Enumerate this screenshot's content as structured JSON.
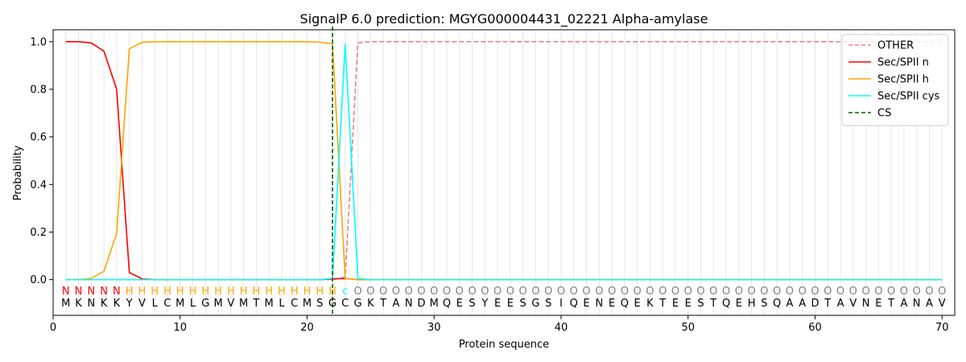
{
  "chart_data": {
    "type": "line",
    "title": "SignalP 6.0 prediction: MGYG000004431_02221 Alpha-amylase",
    "xlabel": "Protein sequence",
    "ylabel": "Probability",
    "xlim": [
      0,
      71
    ],
    "ylim": [
      -0.15,
      1.05
    ],
    "x_ticks": [
      0,
      10,
      20,
      30,
      40,
      50,
      60,
      70
    ],
    "y_ticks": [
      0.0,
      0.2,
      0.4,
      0.6,
      0.8,
      1.0
    ],
    "x_tick_labels": [
      "0",
      "10",
      "20",
      "30",
      "40",
      "50",
      "60",
      "70"
    ],
    "y_tick_labels": [
      "0.0",
      "0.2",
      "0.4",
      "0.6",
      "0.8",
      "1.0"
    ],
    "legend_position": "top-right",
    "sequence": [
      "M",
      "K",
      "N",
      "K",
      "K",
      "Y",
      "V",
      "L",
      "C",
      "M",
      "L",
      "G",
      "M",
      "V",
      "M",
      "T",
      "M",
      "L",
      "C",
      "M",
      "S",
      "G",
      "C",
      "G",
      "K",
      "T",
      "A",
      "N",
      "D",
      "M",
      "Q",
      "E",
      "S",
      "Y",
      "E",
      "E",
      "S",
      "G",
      "S",
      "I",
      "Q",
      "E",
      "N",
      "E",
      "Q",
      "E",
      "K",
      "T",
      "E",
      "E",
      "S",
      "T",
      "Q",
      "E",
      "H",
      "S",
      "Q",
      "A",
      "A",
      "D",
      "T",
      "A",
      "V",
      "N",
      "E",
      "T",
      "A",
      "N",
      "A",
      "V"
    ],
    "labels": [
      "N",
      "N",
      "N",
      "N",
      "N",
      "H",
      "H",
      "H",
      "H",
      "H",
      "H",
      "H",
      "H",
      "H",
      "H",
      "H",
      "H",
      "H",
      "H",
      "H",
      "H",
      "H",
      "C",
      "O",
      "O",
      "O",
      "O",
      "O",
      "O",
      "O",
      "O",
      "O",
      "O",
      "O",
      "O",
      "O",
      "O",
      "O",
      "O",
      "O",
      "O",
      "O",
      "O",
      "O",
      "O",
      "O",
      "O",
      "O",
      "O",
      "O",
      "O",
      "O",
      "O",
      "O",
      "O",
      "O",
      "O",
      "O",
      "O",
      "O",
      "O",
      "O",
      "O",
      "O",
      "O",
      "O",
      "O",
      "O",
      "O",
      "O"
    ],
    "label_colors": {
      "N": "#ff0000",
      "H": "#ffa500",
      "C": "#00ffff",
      "O": "#808080"
    },
    "cs_position": 22,
    "series": [
      {
        "name": "OTHER",
        "color": "#f08080",
        "dash": "dashed",
        "x": [
          1,
          2,
          3,
          4,
          5,
          6,
          7,
          8,
          9,
          10,
          11,
          12,
          13,
          14,
          15,
          16,
          17,
          18,
          19,
          20,
          21,
          22,
          23,
          24,
          25,
          26,
          27,
          28,
          29,
          30,
          31,
          32,
          33,
          34,
          35,
          36,
          37,
          38,
          39,
          40,
          41,
          42,
          43,
          44,
          45,
          46,
          47,
          48,
          49,
          50,
          51,
          52,
          53,
          54,
          55,
          56,
          57,
          58,
          59,
          60,
          61,
          62,
          63,
          64,
          65,
          66,
          67,
          68,
          69,
          70
        ],
        "values": [
          0,
          0,
          0,
          0,
          0,
          0,
          0,
          0,
          0,
          0,
          0,
          0,
          0,
          0,
          0,
          0,
          0,
          0,
          0,
          0,
          0,
          0,
          0.01,
          0.995,
          1,
          1,
          1,
          1,
          1,
          1,
          1,
          1,
          1,
          1,
          1,
          1,
          1,
          1,
          1,
          1,
          1,
          1,
          1,
          1,
          1,
          1,
          1,
          1,
          1,
          1,
          1,
          1,
          1,
          1,
          1,
          1,
          1,
          1,
          1,
          1,
          1,
          1,
          1,
          1,
          1,
          1,
          1,
          1,
          1,
          1
        ]
      },
      {
        "name": "Sec/SPII n",
        "color": "#ff0000",
        "dash": "solid",
        "x": [
          1,
          2,
          3,
          4,
          5,
          6,
          7,
          8,
          9,
          10,
          11,
          12,
          13,
          14,
          15,
          16,
          17,
          18,
          19,
          20,
          21,
          22,
          23,
          24,
          25,
          26,
          27,
          28,
          29,
          30,
          31,
          32,
          33,
          34,
          35,
          36,
          37,
          38,
          39,
          40,
          41,
          42,
          43,
          44,
          45,
          46,
          47,
          48,
          49,
          50,
          51,
          52,
          53,
          54,
          55,
          56,
          57,
          58,
          59,
          60,
          61,
          62,
          63,
          64,
          65,
          66,
          67,
          68,
          69,
          70
        ],
        "values": [
          1.0,
          1.0,
          0.995,
          0.96,
          0.8,
          0.03,
          0.003,
          0,
          0,
          0,
          0,
          0,
          0,
          0,
          0,
          0,
          0,
          0,
          0,
          0,
          0,
          0.003,
          0.005,
          0,
          0,
          0,
          0,
          0,
          0,
          0,
          0,
          0,
          0,
          0,
          0,
          0,
          0,
          0,
          0,
          0,
          0,
          0,
          0,
          0,
          0,
          0,
          0,
          0,
          0,
          0,
          0,
          0,
          0,
          0,
          0,
          0,
          0,
          0,
          0,
          0,
          0,
          0,
          0,
          0,
          0,
          0,
          0,
          0,
          0,
          0
        ]
      },
      {
        "name": "Sec/SPII h",
        "color": "#ffa500",
        "dash": "solid",
        "x": [
          1,
          2,
          3,
          4,
          5,
          6,
          7,
          8,
          9,
          10,
          11,
          12,
          13,
          14,
          15,
          16,
          17,
          18,
          19,
          20,
          21,
          22,
          23,
          24,
          25,
          26,
          27,
          28,
          29,
          30,
          31,
          32,
          33,
          34,
          35,
          36,
          37,
          38,
          39,
          40,
          41,
          42,
          43,
          44,
          45,
          46,
          47,
          48,
          49,
          50,
          51,
          52,
          53,
          54,
          55,
          56,
          57,
          58,
          59,
          60,
          61,
          62,
          63,
          64,
          65,
          66,
          67,
          68,
          69,
          70
        ],
        "values": [
          0,
          0,
          0.005,
          0.035,
          0.195,
          0.97,
          0.997,
          1,
          1,
          1,
          1,
          1,
          1,
          1,
          1,
          1,
          1,
          1,
          1,
          1,
          0.998,
          0.99,
          0.005,
          0,
          0,
          0,
          0,
          0,
          0,
          0,
          0,
          0,
          0,
          0,
          0,
          0,
          0,
          0,
          0,
          0,
          0,
          0,
          0,
          0,
          0,
          0,
          0,
          0,
          0,
          0,
          0,
          0,
          0,
          0,
          0,
          0,
          0,
          0,
          0,
          0,
          0,
          0,
          0,
          0,
          0,
          0,
          0,
          0,
          0,
          0
        ]
      },
      {
        "name": "Sec/SPII cys",
        "color": "#00ffff",
        "dash": "solid",
        "x": [
          1,
          2,
          3,
          4,
          5,
          6,
          7,
          8,
          9,
          10,
          11,
          12,
          13,
          14,
          15,
          16,
          17,
          18,
          19,
          20,
          21,
          22,
          23,
          24,
          25,
          26,
          27,
          28,
          29,
          30,
          31,
          32,
          33,
          34,
          35,
          36,
          37,
          38,
          39,
          40,
          41,
          42,
          43,
          44,
          45,
          46,
          47,
          48,
          49,
          50,
          51,
          52,
          53,
          54,
          55,
          56,
          57,
          58,
          59,
          60,
          61,
          62,
          63,
          64,
          65,
          66,
          67,
          68,
          69,
          70
        ],
        "values": [
          0,
          0,
          0,
          0,
          0,
          0,
          0,
          0,
          0,
          0,
          0,
          0,
          0,
          0,
          0,
          0,
          0,
          0,
          0,
          0,
          0,
          0.005,
          0.99,
          0.005,
          0,
          0,
          0,
          0,
          0,
          0,
          0,
          0,
          0,
          0,
          0,
          0,
          0,
          0,
          0,
          0,
          0,
          0,
          0,
          0,
          0,
          0,
          0,
          0,
          0,
          0,
          0,
          0,
          0,
          0,
          0,
          0,
          0,
          0,
          0,
          0,
          0,
          0,
          0,
          0,
          0,
          0,
          0,
          0,
          0,
          0
        ]
      },
      {
        "name": "CS",
        "color": "#006400",
        "dash": "dashed",
        "x": [],
        "values": []
      }
    ]
  }
}
